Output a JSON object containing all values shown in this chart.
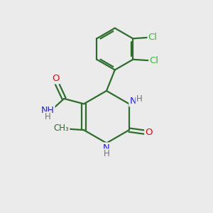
{
  "bg_color": "#ebebeb",
  "bond_color": "#2d6e2d",
  "bond_width": 1.6,
  "atom_colors": {
    "C": "#2d6e2d",
    "N": "#1a1aff",
    "O": "#ff0000",
    "Cl": "#3cb83c",
    "H": "#707070"
  }
}
